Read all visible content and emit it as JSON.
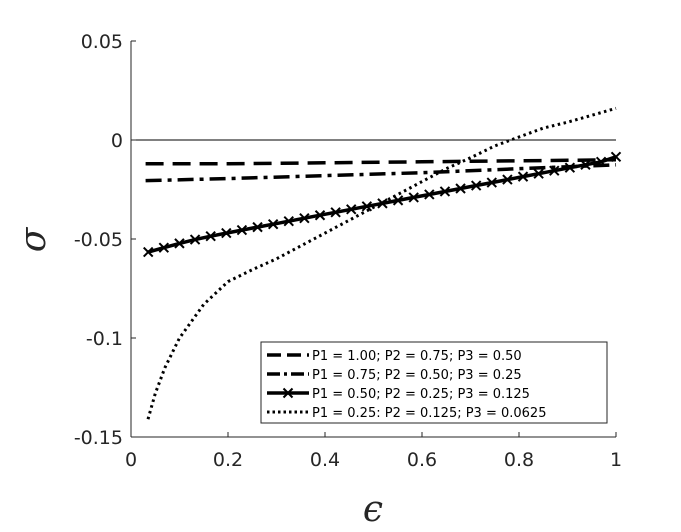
{
  "chart_data": {
    "type": "line",
    "xlabel": "ϵ",
    "ylabel": "σ",
    "xlim": [
      0,
      1
    ],
    "ylim": [
      -0.15,
      0.05
    ],
    "xticks": [
      0,
      0.2,
      0.4,
      0.6,
      0.8,
      1
    ],
    "xtick_labels": [
      "0",
      "0.2",
      "0.4",
      "0.6",
      "0.8",
      "1"
    ],
    "yticks": [
      0.05,
      0,
      -0.05,
      -0.1,
      -0.15
    ],
    "ytick_labels": [
      "0.05",
      "0",
      "-0.05",
      "-0.1",
      "-0.15"
    ],
    "grid": false,
    "reference_line": {
      "y": 0
    },
    "legend_position": "bottom-right",
    "series": [
      {
        "name": "P1 = 1.00; P2 = 0.75; P3 = 0.50",
        "style": "dashed",
        "marker": "none",
        "color": "#000000",
        "x": [
          0.03,
          0.2,
          0.4,
          0.6,
          0.8,
          1.0
        ],
        "y": [
          -0.012,
          -0.012,
          -0.0115,
          -0.011,
          -0.0105,
          -0.01
        ]
      },
      {
        "name": "P1 = 0.75; P2 = 0.50; P3 = 0.25",
        "style": "dashdot",
        "marker": "none",
        "color": "#000000",
        "x": [
          0.03,
          0.2,
          0.4,
          0.6,
          0.8,
          1.0
        ],
        "y": [
          -0.0205,
          -0.0195,
          -0.018,
          -0.0165,
          -0.0145,
          -0.0125
        ]
      },
      {
        "name": "P1 = 0.50; P2 = 0.25; P3 = 0.125",
        "style": "solid",
        "marker": "x",
        "color": "#000000",
        "x": [
          0.0355,
          0.0677,
          0.0999,
          0.1321,
          0.1643,
          0.1965,
          0.2287,
          0.2609,
          0.2931,
          0.3253,
          0.3575,
          0.3897,
          0.4219,
          0.4541,
          0.4863,
          0.5185,
          0.5507,
          0.5829,
          0.6151,
          0.6473,
          0.6795,
          0.7117,
          0.7439,
          0.7761,
          0.8083,
          0.8405,
          0.8727,
          0.9049,
          0.9371,
          0.9693,
          1.0
        ],
        "y": [
          -0.0566,
          -0.0544,
          -0.0522,
          -0.0503,
          -0.0486,
          -0.047,
          -0.0455,
          -0.044,
          -0.0425,
          -0.041,
          -0.0395,
          -0.038,
          -0.0365,
          -0.035,
          -0.0335,
          -0.032,
          -0.0305,
          -0.029,
          -0.0275,
          -0.026,
          -0.0245,
          -0.023,
          -0.0215,
          -0.02,
          -0.0185,
          -0.017,
          -0.0155,
          -0.014,
          -0.0125,
          -0.011,
          -0.0085
        ]
      },
      {
        "name": "P1 = 0.25: P2 = 0.125; P3 = 0.0625",
        "style": "dotted",
        "marker": "none",
        "color": "#000000",
        "x": [
          0.035,
          0.05,
          0.07,
          0.1,
          0.15,
          0.2,
          0.25,
          0.3,
          0.35,
          0.4,
          0.45,
          0.5,
          0.55,
          0.6,
          0.65,
          0.7,
          0.75,
          0.8,
          0.85,
          0.9,
          0.95,
          1.0
        ],
        "y": [
          -0.141,
          -0.128,
          -0.115,
          -0.1,
          -0.083,
          -0.0715,
          -0.0655,
          -0.06,
          -0.0535,
          -0.047,
          -0.0405,
          -0.034,
          -0.0275,
          -0.021,
          -0.0145,
          -0.009,
          -0.003,
          0.0015,
          0.006,
          0.009,
          0.0125,
          0.016
        ]
      }
    ]
  }
}
